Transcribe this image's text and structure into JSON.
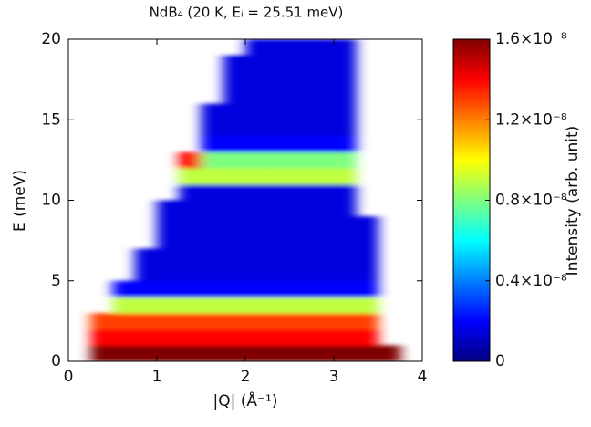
{
  "chart_data": {
    "type": "heatmap",
    "title": "NdB₄ (20 K, Eᵢ = 25.51 meV)",
    "x_label": "|Q| (Å⁻¹)",
    "y_label": "E (meV)",
    "colorbar_label": "Intensity (arb. unit)",
    "xbins": [
      0,
      0.25,
      0.5,
      0.75,
      1,
      1.25,
      1.5,
      1.75,
      2,
      2.25,
      2.5,
      2.75,
      3,
      3.25,
      3.5,
      3.75,
      4
    ],
    "ybins": [
      0,
      1,
      2,
      3,
      4,
      5,
      6,
      7,
      8,
      9,
      10,
      11,
      12,
      13,
      14,
      15,
      16,
      17,
      18,
      19,
      20
    ],
    "z": [
      [
        null,
        1.6e-08,
        1.6e-08,
        1.6e-08,
        1.6e-08,
        1.6e-08,
        1.6e-08,
        1.6e-08,
        1.6e-08,
        1.6e-08,
        1.6e-08,
        1.6e-08,
        1.6e-08,
        1.6e-08,
        1.6e-08,
        null
      ],
      [
        null,
        1.4e-08,
        1.4e-08,
        1.4e-08,
        1.4e-08,
        1.4e-08,
        1.4e-08,
        1.4e-08,
        1.4e-08,
        1.4e-08,
        1.4e-08,
        1.4e-08,
        1.4e-08,
        1.4e-08,
        null,
        null
      ],
      [
        null,
        1.3e-08,
        1.3e-08,
        1.3e-08,
        1.3e-08,
        1.3e-08,
        1.3e-08,
        1.3e-08,
        1.3e-08,
        1.3e-08,
        1.3e-08,
        1.3e-08,
        1.3e-08,
        1.3e-08,
        null,
        null
      ],
      [
        null,
        null,
        9e-09,
        9e-09,
        9e-09,
        9e-09,
        9e-09,
        9e-09,
        9e-09,
        9e-09,
        9e-09,
        9e-09,
        9e-09,
        9e-09,
        null,
        null
      ],
      [
        null,
        null,
        2e-09,
        2e-09,
        2e-09,
        2e-09,
        2e-09,
        2e-09,
        2e-09,
        2e-09,
        2e-09,
        2e-09,
        2e-09,
        2e-09,
        null,
        null
      ],
      [
        null,
        null,
        null,
        1.5e-09,
        1.5e-09,
        1.5e-09,
        1.5e-09,
        1.5e-09,
        1.5e-09,
        1.5e-09,
        1.5e-09,
        1.5e-09,
        1.5e-09,
        1.5e-09,
        null,
        null
      ],
      [
        null,
        null,
        null,
        1.5e-09,
        1.5e-09,
        1.5e-09,
        1.5e-09,
        1.5e-09,
        1.5e-09,
        1.5e-09,
        1.5e-09,
        1.5e-09,
        1.5e-09,
        1.5e-09,
        null,
        null
      ],
      [
        null,
        null,
        null,
        null,
        1.5e-09,
        1.5e-09,
        1.5e-09,
        1.5e-09,
        1.5e-09,
        1.5e-09,
        1.5e-09,
        1.5e-09,
        1.5e-09,
        1.5e-09,
        null,
        null
      ],
      [
        null,
        null,
        null,
        null,
        1.5e-09,
        1.5e-09,
        1.5e-09,
        1.5e-09,
        1.5e-09,
        1.5e-09,
        1.5e-09,
        1.5e-09,
        1.5e-09,
        1.5e-09,
        null,
        null
      ],
      [
        null,
        null,
        null,
        null,
        1.5e-09,
        1.5e-09,
        1.5e-09,
        1.5e-09,
        1.5e-09,
        1.5e-09,
        1.5e-09,
        1.5e-09,
        1.5e-09,
        null,
        null,
        null
      ],
      [
        null,
        null,
        null,
        null,
        null,
        1.5e-09,
        1.5e-09,
        1.5e-09,
        1.5e-09,
        1.5e-09,
        1.5e-09,
        1.5e-09,
        1.5e-09,
        null,
        null,
        null
      ],
      [
        null,
        null,
        null,
        null,
        null,
        9e-09,
        9e-09,
        9e-09,
        9e-09,
        9e-09,
        9e-09,
        9e-09,
        9e-09,
        null,
        null,
        null
      ],
      [
        null,
        null,
        null,
        null,
        null,
        1.4e-08,
        8e-09,
        8e-09,
        8e-09,
        8e-09,
        8e-09,
        8e-09,
        8e-09,
        null,
        null,
        null
      ],
      [
        null,
        null,
        null,
        null,
        null,
        null,
        2e-09,
        2e-09,
        2e-09,
        2e-09,
        2e-09,
        2e-09,
        2e-09,
        null,
        null,
        null
      ],
      [
        null,
        null,
        null,
        null,
        null,
        null,
        1.5e-09,
        1.5e-09,
        1.5e-09,
        1.5e-09,
        1.5e-09,
        1.5e-09,
        1.5e-09,
        null,
        null,
        null
      ],
      [
        null,
        null,
        null,
        null,
        null,
        null,
        1.5e-09,
        1.5e-09,
        1.5e-09,
        1.5e-09,
        1.5e-09,
        1.5e-09,
        1.5e-09,
        null,
        null,
        null
      ],
      [
        null,
        null,
        null,
        null,
        null,
        null,
        null,
        1.5e-09,
        1.5e-09,
        1.5e-09,
        1.5e-09,
        1.5e-09,
        1.5e-09,
        null,
        null,
        null
      ],
      [
        null,
        null,
        null,
        null,
        null,
        null,
        null,
        1.5e-09,
        1.5e-09,
        1.5e-09,
        1.5e-09,
        1.5e-09,
        1.5e-09,
        null,
        null,
        null
      ],
      [
        null,
        null,
        null,
        null,
        null,
        null,
        null,
        1.5e-09,
        1.5e-09,
        1.5e-09,
        1.5e-09,
        1.5e-09,
        1.5e-09,
        null,
        null,
        null
      ],
      [
        null,
        null,
        null,
        null,
        null,
        null,
        null,
        null,
        1.5e-09,
        1.5e-09,
        1.5e-09,
        1.5e-09,
        1.5e-09,
        null,
        null,
        null
      ]
    ],
    "xlim": [
      0,
      4
    ],
    "xticks": [
      0,
      1,
      2,
      3,
      4
    ],
    "ylim": [
      0,
      20
    ],
    "yticks": [
      0,
      5,
      10,
      15,
      20
    ],
    "zlim": [
      0,
      1.6e-08
    ],
    "zticks": [
      0,
      {
        "value": 4e-09,
        "label": "0.4×10⁻⁸"
      },
      {
        "value": 8e-09,
        "label": "0.8×10⁻⁸"
      },
      {
        "value": 1.2e-08,
        "label": "1.2×10⁻⁸"
      },
      {
        "value": 1.6e-08,
        "label": "1.6×10⁻⁸"
      }
    ],
    "colorscale": [
      "#00007f",
      "#0000ff",
      "#007fff",
      "#00ffff",
      "#7fff7f",
      "#ffff00",
      "#ff7f00",
      "#ff0000",
      "#7f0000"
    ]
  }
}
